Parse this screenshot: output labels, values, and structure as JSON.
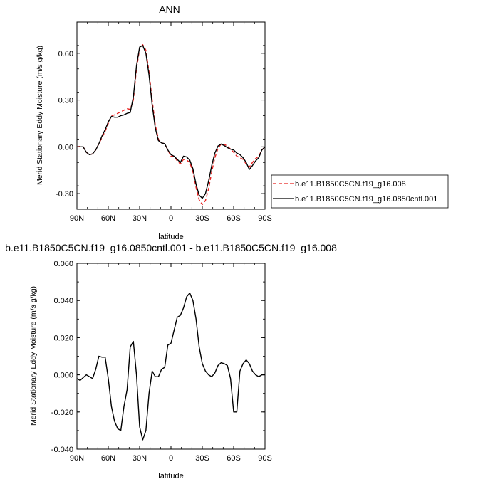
{
  "chart_data": [
    {
      "type": "line",
      "title": "ANN",
      "xlabel": "latitude",
      "ylabel": "Merid Stationary Eddy Moisture (m/s g/kg)",
      "x_unit": "degrees latitude (90N to 90S)",
      "xlim": [
        90,
        -90
      ],
      "ylim": [
        -0.4,
        0.8
      ],
      "xticks": [
        {
          "value": 90,
          "label": "90N"
        },
        {
          "value": 60,
          "label": "60N"
        },
        {
          "value": 30,
          "label": "30N"
        },
        {
          "value": 0,
          "label": "0"
        },
        {
          "value": -30,
          "label": "30S"
        },
        {
          "value": -60,
          "label": "60S"
        },
        {
          "value": -90,
          "label": "90S"
        }
      ],
      "yticks": [
        {
          "value": 0.6,
          "label": "0.60"
        },
        {
          "value": 0.3,
          "label": "0.30"
        },
        {
          "value": 0.0,
          "label": "0.00"
        },
        {
          "value": -0.3,
          "label": "-0.30"
        }
      ],
      "grid": false,
      "legend": "outside-right",
      "series": [
        {
          "name": "b.e11.B1850C5CN.f19_g16.008",
          "color": "#e8201f",
          "dash": "dashed",
          "x": [
            90,
            87,
            84,
            81,
            78,
            75,
            72,
            69,
            66,
            63,
            60,
            57,
            54,
            51,
            48,
            45,
            42,
            39,
            36,
            33,
            30,
            27,
            24,
            21,
            18,
            15,
            12,
            9,
            6,
            3,
            0,
            -3,
            -6,
            -9,
            -12,
            -15,
            -18,
            -21,
            -24,
            -27,
            -30,
            -33,
            -36,
            -39,
            -42,
            -45,
            -48,
            -51,
            -54,
            -57,
            -60,
            -63,
            -66,
            -69,
            -72,
            -75,
            -78,
            -81,
            -84,
            -87,
            -90
          ],
          "y": [
            0.0,
            0.003,
            0.0,
            -0.035,
            -0.05,
            -0.045,
            -0.02,
            0.02,
            0.06,
            0.1,
            0.15,
            0.2,
            0.205,
            0.215,
            0.225,
            0.235,
            0.245,
            0.24,
            0.3,
            0.5,
            0.63,
            0.655,
            0.62,
            0.48,
            0.3,
            0.14,
            0.05,
            0.025,
            0.02,
            -0.02,
            -0.06,
            -0.06,
            -0.09,
            -0.11,
            -0.08,
            -0.085,
            -0.1,
            -0.16,
            -0.26,
            -0.34,
            -0.37,
            -0.345,
            -0.27,
            -0.16,
            -0.07,
            -0.01,
            0.018,
            0.016,
            0.005,
            -0.015,
            -0.035,
            -0.06,
            -0.07,
            -0.08,
            -0.11,
            -0.13,
            -0.1,
            -0.075,
            -0.06,
            -0.02,
            0.0
          ]
        },
        {
          "name": "b.e11.B1850C5CN.f19_g16.0850cntl.001",
          "color": "#000000",
          "dash": "solid",
          "x": [
            90,
            87,
            84,
            81,
            78,
            75,
            72,
            69,
            66,
            63,
            60,
            57,
            54,
            51,
            48,
            45,
            42,
            39,
            36,
            33,
            30,
            27,
            24,
            21,
            18,
            15,
            12,
            9,
            6,
            3,
            0,
            -3,
            -6,
            -9,
            -12,
            -15,
            -18,
            -21,
            -24,
            -27,
            -30,
            -33,
            -36,
            -39,
            -42,
            -45,
            -48,
            -51,
            -54,
            -57,
            -60,
            -63,
            -66,
            -69,
            -72,
            -75,
            -78,
            -81,
            -84,
            -87,
            -90
          ],
          "y": [
            0.0,
            0.0,
            0.0,
            -0.035,
            -0.05,
            -0.045,
            -0.02,
            0.02,
            0.07,
            0.11,
            0.16,
            0.195,
            0.19,
            0.19,
            0.2,
            0.205,
            0.215,
            0.22,
            0.32,
            0.52,
            0.64,
            0.65,
            0.6,
            0.46,
            0.27,
            0.12,
            0.04,
            0.025,
            0.02,
            -0.02,
            -0.05,
            -0.06,
            -0.08,
            -0.1,
            -0.06,
            -0.065,
            -0.085,
            -0.14,
            -0.24,
            -0.31,
            -0.33,
            -0.3,
            -0.22,
            -0.12,
            -0.04,
            0.005,
            0.018,
            0.008,
            -0.005,
            -0.015,
            -0.02,
            -0.04,
            -0.05,
            -0.07,
            -0.1,
            -0.145,
            -0.12,
            -0.09,
            -0.07,
            -0.02,
            0.0
          ]
        }
      ]
    },
    {
      "type": "line",
      "title": "b.e11.B1850C5CN.f19_g16.0850cntl.001 - b.e11.B1850C5CN.f19_g16.008",
      "xlabel": "latitude",
      "ylabel": "Merid Stationary Eddy Moisture (m/s g/kg)",
      "xlim": [
        90,
        -90
      ],
      "ylim": [
        -0.04,
        0.06
      ],
      "xticks": [
        {
          "value": 90,
          "label": "90N"
        },
        {
          "value": 60,
          "label": "60N"
        },
        {
          "value": 30,
          "label": "30N"
        },
        {
          "value": 0,
          "label": "0"
        },
        {
          "value": -30,
          "label": "30S"
        },
        {
          "value": -60,
          "label": "60S"
        },
        {
          "value": -90,
          "label": "90S"
        }
      ],
      "yticks": [
        {
          "value": 0.06,
          "label": "0.060"
        },
        {
          "value": 0.04,
          "label": "0.040"
        },
        {
          "value": 0.02,
          "label": "0.020"
        },
        {
          "value": 0.0,
          "label": "0.000"
        },
        {
          "value": -0.02,
          "label": "-0.020"
        },
        {
          "value": -0.04,
          "label": "-0.040"
        }
      ],
      "grid": false,
      "series": [
        {
          "color": "#000000",
          "dash": "solid",
          "x": [
            90,
            87,
            84,
            81,
            78,
            75,
            72,
            69,
            66,
            63,
            60,
            57,
            54,
            51,
            48,
            45,
            42,
            39,
            36,
            33,
            30,
            27,
            24,
            21,
            18,
            15,
            12,
            9,
            6,
            3,
            0,
            -3,
            -6,
            -9,
            -12,
            -15,
            -18,
            -21,
            -24,
            -27,
            -30,
            -33,
            -36,
            -39,
            -42,
            -45,
            -48,
            -51,
            -54,
            -57,
            -60,
            -63,
            -66,
            -69,
            -72,
            -75,
            -78,
            -81,
            -84,
            -87,
            -90
          ],
          "y": [
            -0.002,
            -0.003,
            -0.0015,
            0.0,
            -0.001,
            -0.002,
            0.003,
            0.01,
            0.0095,
            0.0095,
            -0.002,
            -0.017,
            -0.025,
            -0.029,
            -0.03,
            -0.017,
            -0.008,
            0.015,
            0.018,
            0.0,
            -0.028,
            -0.035,
            -0.03,
            -0.01,
            0.002,
            -0.001,
            -0.001,
            0.003,
            0.004,
            0.016,
            0.017,
            0.024,
            0.031,
            0.032,
            0.036,
            0.042,
            0.044,
            0.04,
            0.03,
            0.015,
            0.006,
            0.002,
            0.0,
            -0.001,
            0.001,
            0.005,
            0.0065,
            0.006,
            0.005,
            -0.002,
            -0.02,
            -0.02,
            0.002,
            0.006,
            0.008,
            0.006,
            0.002,
            0.0,
            -0.001,
            0.0,
            0.0
          ]
        }
      ]
    }
  ]
}
